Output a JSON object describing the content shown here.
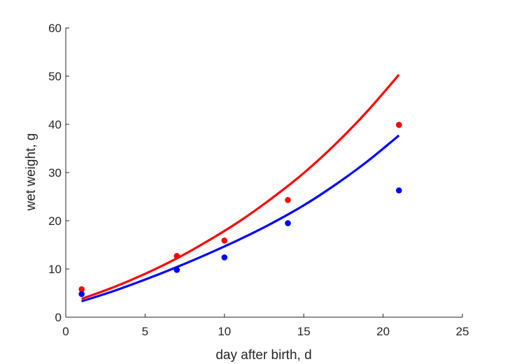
{
  "chart_data": {
    "type": "scatter",
    "xlabel": "day after birth, d",
    "ylabel": "wet weight, g",
    "xlim": [
      0,
      25
    ],
    "ylim": [
      0,
      60
    ],
    "xticks": [
      0,
      5,
      10,
      15,
      20,
      25
    ],
    "yticks": [
      0,
      10,
      20,
      30,
      40,
      50,
      60
    ],
    "grid": false,
    "legend": "none",
    "series": [
      {
        "color": "#ff0000",
        "points": {
          "x": [
            1,
            7,
            10,
            14,
            21
          ],
          "y": [
            5.8,
            12.7,
            15.9,
            24.3,
            39.9
          ]
        },
        "fit_line": {
          "x": [
            1,
            3,
            5,
            7,
            9,
            11,
            13,
            15,
            17,
            19,
            21
          ],
          "y": [
            3.8,
            6.2,
            9.0,
            12.2,
            15.9,
            20.0,
            24.7,
            29.9,
            35.9,
            42.7,
            50.3
          ]
        }
      },
      {
        "color": "#0000ff",
        "points": {
          "x": [
            1,
            7,
            10,
            14,
            21
          ],
          "y": [
            4.8,
            9.8,
            12.4,
            19.5,
            26.3
          ]
        },
        "fit_line": {
          "x": [
            1,
            3,
            5,
            7,
            9,
            11,
            13,
            15,
            17,
            19,
            21
          ],
          "y": [
            3.3,
            5.4,
            7.8,
            10.4,
            13.2,
            16.2,
            19.5,
            23.2,
            27.5,
            32.3,
            37.7
          ]
        }
      }
    ]
  }
}
